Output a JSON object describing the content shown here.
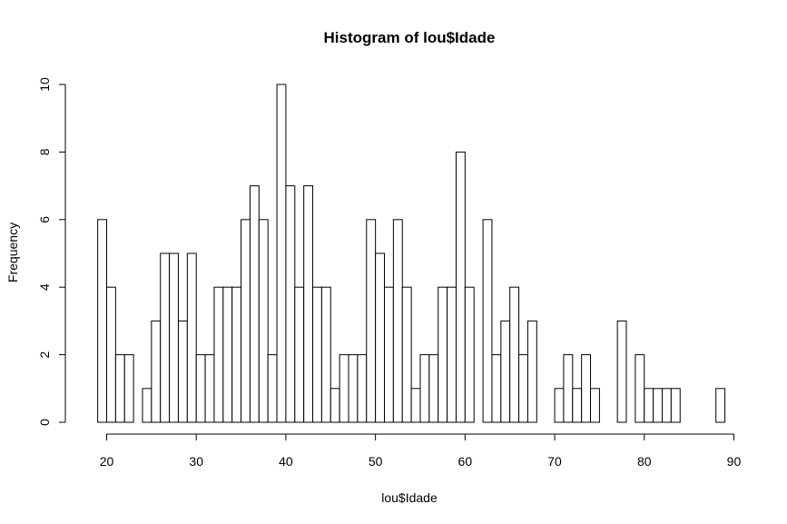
{
  "chart_data": {
    "type": "bar",
    "title": "Histogram of lou$Idade",
    "xlabel": "lou$Idade",
    "ylabel": "Frequency",
    "xlim": [
      19,
      89
    ],
    "ylim": [
      0,
      10
    ],
    "bin_start": 19,
    "bin_width": 1,
    "values": [
      6,
      4,
      2,
      2,
      0,
      1,
      3,
      5,
      5,
      3,
      5,
      2,
      2,
      4,
      4,
      4,
      6,
      7,
      6,
      2,
      10,
      7,
      4,
      7,
      4,
      4,
      1,
      2,
      2,
      2,
      6,
      5,
      4,
      6,
      4,
      1,
      2,
      2,
      4,
      4,
      8,
      4,
      0,
      6,
      2,
      3,
      4,
      2,
      3,
      0,
      0,
      1,
      2,
      1,
      2,
      1,
      0,
      0,
      3,
      0,
      2,
      1,
      1,
      1,
      1,
      0,
      0,
      0,
      0,
      1
    ],
    "x_ticks": [
      "20",
      "30",
      "40",
      "50",
      "60",
      "70",
      "80",
      "90"
    ],
    "y_ticks": [
      "0",
      "2",
      "4",
      "6",
      "8",
      "10"
    ],
    "grid": false
  }
}
